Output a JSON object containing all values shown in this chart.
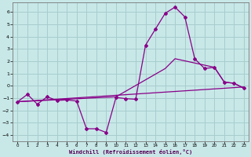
{
  "xlabel": "Windchill (Refroidissement éolien,°C)",
  "xlim": [
    -0.5,
    23.5
  ],
  "ylim": [
    -4.5,
    6.8
  ],
  "xticks": [
    0,
    1,
    2,
    3,
    4,
    5,
    6,
    7,
    8,
    9,
    10,
    11,
    12,
    13,
    14,
    15,
    16,
    17,
    18,
    19,
    20,
    21,
    22,
    23
  ],
  "yticks": [
    -4,
    -3,
    -2,
    -1,
    0,
    1,
    2,
    3,
    4,
    5,
    6
  ],
  "background_color": "#c8e8e8",
  "grid_color": "#a8cccc",
  "line_color": "#880088",
  "line1_x": [
    0,
    1,
    2,
    3,
    4,
    5,
    6,
    7,
    8,
    9,
    10,
    11,
    12,
    13,
    14,
    15,
    16,
    17,
    18,
    19,
    20,
    21,
    22,
    23
  ],
  "line1_y": [
    -1.3,
    -0.7,
    -1.5,
    -0.9,
    -1.2,
    -1.15,
    -1.25,
    -3.5,
    -3.5,
    -3.8,
    -0.95,
    -1.05,
    -1.1,
    3.3,
    4.6,
    5.9,
    6.4,
    5.6,
    2.2,
    1.4,
    1.5,
    0.3,
    0.2,
    -0.2
  ],
  "line2_x": [
    0,
    23
  ],
  "line2_y": [
    -1.3,
    -0.1
  ],
  "line3_x": [
    0,
    10,
    15,
    16,
    20,
    21,
    22,
    23
  ],
  "line3_y": [
    -1.3,
    -0.9,
    1.4,
    2.2,
    1.5,
    0.3,
    0.2,
    -0.2
  ]
}
